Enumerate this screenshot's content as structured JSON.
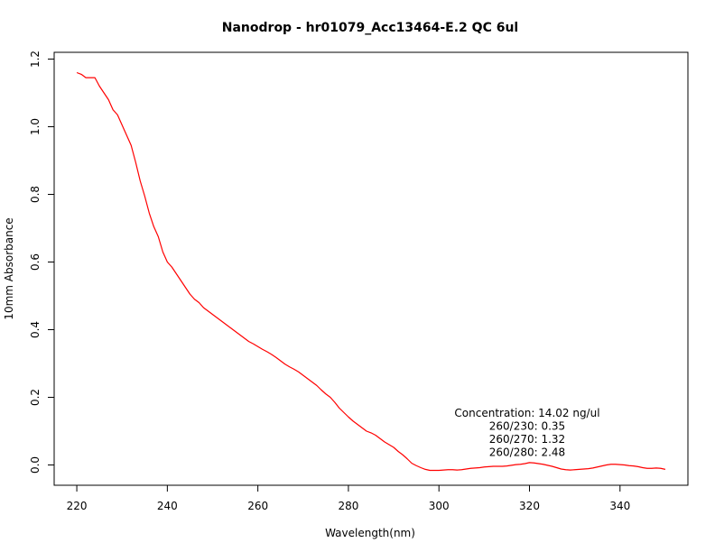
{
  "chart_data": {
    "type": "line",
    "title": "Nanodrop - hr01079_Acc13464-E.2 QC 6ul",
    "xlabel": "Wavelength(nm)",
    "ylabel": "10mm Absorbance",
    "xlim": [
      215,
      355
    ],
    "ylim": [
      -0.06,
      1.22
    ],
    "x_ticks": [
      220,
      240,
      260,
      280,
      300,
      320,
      340
    ],
    "y_ticks": [
      0.0,
      0.2,
      0.4,
      0.6,
      0.8,
      1.0,
      1.2
    ],
    "x_tick_labels": [
      "220",
      "240",
      "260",
      "280",
      "300",
      "320",
      "340"
    ],
    "y_tick_labels": [
      "0.0",
      "0.2",
      "0.4",
      "0.6",
      "0.8",
      "1.0",
      "1.2"
    ],
    "grid": false,
    "series": [
      {
        "color": "#ff0000",
        "x": [
          220,
          221,
          222,
          223,
          224,
          225,
          226,
          227,
          228,
          229,
          230,
          231,
          232,
          233,
          234,
          235,
          236,
          237,
          238,
          239,
          240,
          241,
          242,
          243,
          244,
          245,
          246,
          247,
          248,
          249,
          250,
          251,
          252,
          253,
          254,
          255,
          256,
          257,
          258,
          259,
          260,
          261,
          262,
          263,
          264,
          265,
          266,
          267,
          268,
          269,
          270,
          271,
          272,
          273,
          274,
          275,
          276,
          277,
          278,
          279,
          280,
          281,
          282,
          283,
          284,
          285,
          286,
          287,
          288,
          289,
          290,
          291,
          292,
          293,
          294,
          295,
          296,
          297,
          298,
          299,
          300,
          301,
          302,
          303,
          304,
          305,
          306,
          307,
          308,
          309,
          310,
          311,
          312,
          313,
          314,
          315,
          316,
          317,
          318,
          319,
          320,
          321,
          322,
          323,
          324,
          325,
          326,
          327,
          328,
          329,
          330,
          331,
          332,
          333,
          334,
          335,
          336,
          337,
          338,
          339,
          340,
          341,
          342,
          343,
          344,
          345,
          346,
          347,
          348,
          349,
          350
        ],
        "y": [
          1.16,
          1.155,
          1.145,
          1.145,
          1.145,
          1.12,
          1.1,
          1.08,
          1.05,
          1.035,
          1.005,
          0.975,
          0.945,
          0.895,
          0.84,
          0.795,
          0.745,
          0.705,
          0.675,
          0.63,
          0.6,
          0.585,
          0.565,
          0.545,
          0.525,
          0.505,
          0.49,
          0.48,
          0.465,
          0.455,
          0.445,
          0.435,
          0.425,
          0.415,
          0.405,
          0.395,
          0.385,
          0.375,
          0.365,
          0.358,
          0.35,
          0.342,
          0.335,
          0.327,
          0.318,
          0.308,
          0.298,
          0.29,
          0.283,
          0.275,
          0.265,
          0.255,
          0.245,
          0.235,
          0.222,
          0.21,
          0.2,
          0.185,
          0.168,
          0.155,
          0.142,
          0.13,
          0.12,
          0.11,
          0.1,
          0.095,
          0.088,
          0.078,
          0.068,
          0.06,
          0.052,
          0.04,
          0.03,
          0.018,
          0.005,
          -0.002,
          -0.008,
          -0.013,
          -0.016,
          -0.016,
          -0.016,
          -0.015,
          -0.014,
          -0.014,
          -0.015,
          -0.014,
          -0.012,
          -0.01,
          -0.009,
          -0.008,
          -0.006,
          -0.005,
          -0.004,
          -0.004,
          -0.004,
          -0.003,
          -0.001,
          0.001,
          0.002,
          0.004,
          0.007,
          0.006,
          0.004,
          0.002,
          -0.001,
          -0.004,
          -0.008,
          -0.012,
          -0.014,
          -0.015,
          -0.014,
          -0.013,
          -0.012,
          -0.011,
          -0.009,
          -0.006,
          -0.003,
          0.0,
          0.002,
          0.002,
          0.001,
          0.0,
          -0.002,
          -0.003,
          -0.005,
          -0.008,
          -0.01,
          -0.01,
          -0.009,
          -0.01,
          -0.013
        ]
      }
    ],
    "annotations": [
      "Concentration: 14.02 ng/ul",
      "260/230: 0.35",
      "260/270: 1.32",
      "260/280: 2.48"
    ]
  }
}
